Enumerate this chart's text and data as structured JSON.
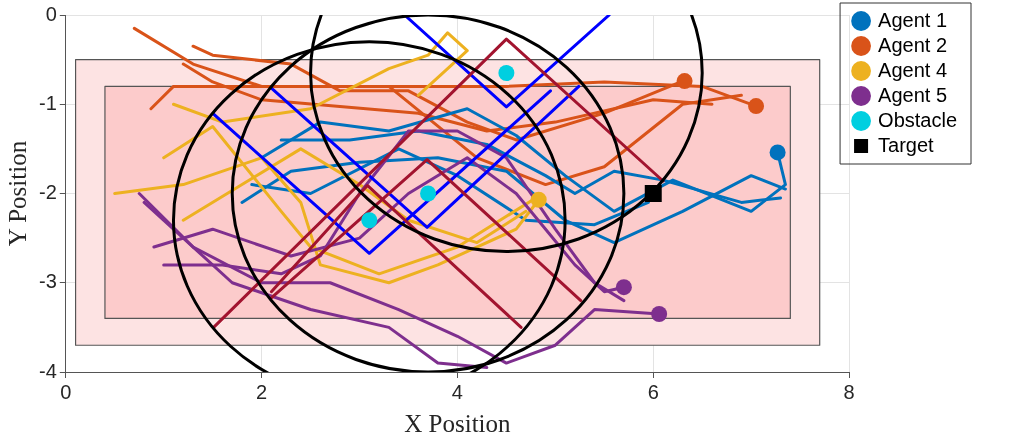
{
  "chart_data": {
    "type": "line",
    "xlabel": "X Position",
    "ylabel": "Y Position",
    "xlim": [
      0,
      8
    ],
    "ylim": [
      -4,
      0
    ],
    "xticks": [
      0,
      2,
      4,
      6,
      8
    ],
    "yticks": [
      -4,
      -3,
      -2,
      -1,
      0
    ],
    "grid": true,
    "legend": "right",
    "marker": "none",
    "line_style": "solid",
    "series": [
      {
        "type": "area",
        "color": "#fde3e3",
        "x": [
          0.1,
          7.7,
          7.7,
          0.1,
          0.1
        ],
        "values": [
          -0.5,
          -0.5,
          -3.7,
          -3.7,
          -0.5
        ]
      },
      {
        "type": "area",
        "color": "#fccbcb",
        "x": [
          0.4,
          7.4,
          7.4,
          0.4,
          0.4
        ],
        "values": [
          -0.8,
          -0.8,
          -3.4,
          -3.4,
          -0.8
        ]
      },
      {
        "type": "line",
        "color": "#d95319",
        "x": [
          0.7,
          1.3,
          2.0,
          3.0,
          4.5,
          5.5,
          6.5,
          7.05
        ],
        "values": [
          -0.15,
          -0.55,
          -0.8,
          -0.8,
          -0.8,
          -0.75,
          -0.8,
          -1.02
        ]
      },
      {
        "type": "line",
        "color": "#d95319",
        "x": [
          1.3,
          1.5,
          2.3,
          2.8,
          3.5,
          4.1,
          4.6,
          5.5,
          6.3
        ],
        "values": [
          -0.35,
          -0.45,
          -0.55,
          -0.85,
          -0.85,
          -1.2,
          -1.4,
          -1.1,
          -0.74
        ]
      },
      {
        "type": "line",
        "color": "#d95319",
        "x": [
          0.87,
          1.1,
          2.0,
          3.3,
          4.2,
          4.9,
          5.5,
          6.3,
          6.9
        ],
        "values": [
          -1.05,
          -0.8,
          -0.8,
          -0.8,
          -1.6,
          -1.9,
          -1.7,
          -1.0,
          -0.9
        ]
      },
      {
        "type": "line",
        "color": "#d95319",
        "x": [
          1.2,
          1.5,
          2.0,
          3.6,
          4.3,
          5.0,
          6.0,
          6.6
        ],
        "values": [
          -0.55,
          -0.75,
          -0.95,
          -1.1,
          -1.3,
          -1.2,
          -0.95,
          -1.0
        ]
      },
      {
        "type": "line",
        "color": "#0072bd",
        "x": [
          2.0,
          2.6,
          3.3,
          4.1,
          4.6,
          5.1,
          5.6,
          6.2,
          7.0,
          7.35,
          7.27
        ],
        "values": [
          -1.6,
          -1.2,
          -1.3,
          -1.05,
          -1.35,
          -1.8,
          -2.2,
          -1.85,
          -2.2,
          -1.9,
          -1.54
        ]
      },
      {
        "type": "line",
        "color": "#0072bd",
        "x": [
          1.8,
          2.3,
          3.0,
          3.8,
          4.5,
          5.1,
          5.6,
          6.3,
          7.0,
          7.35
        ],
        "values": [
          -2.1,
          -1.75,
          -1.65,
          -1.6,
          -1.75,
          -2.3,
          -2.55,
          -2.2,
          -1.8,
          -1.95
        ]
      },
      {
        "type": "line",
        "color": "#0072bd",
        "x": [
          2.2,
          2.9,
          3.6,
          4.3,
          4.9,
          5.2,
          5.6,
          6.1,
          6.9,
          7.3
        ],
        "values": [
          -1.4,
          -1.4,
          -1.3,
          -1.45,
          -1.8,
          -2.0,
          -1.75,
          -1.85,
          -2.1,
          -2.05
        ]
      },
      {
        "type": "line",
        "color": "#0072bd",
        "x": [
          1.9,
          2.5,
          3.4,
          4.0,
          4.7,
          5.4,
          5.95
        ],
        "values": [
          -1.9,
          -2.0,
          -1.5,
          -1.8,
          -2.3,
          -2.35,
          -2.1
        ]
      },
      {
        "type": "line",
        "color": "#edb120",
        "x": [
          1.1,
          1.6,
          2.5,
          3.3,
          3.7,
          3.9,
          4.1,
          3.9,
          3.6
        ],
        "values": [
          -1.0,
          -1.2,
          -1.05,
          -0.6,
          -0.45,
          -0.2,
          -0.4,
          -0.6,
          -0.9
        ]
      },
      {
        "type": "line",
        "color": "#edb120",
        "x": [
          0.5,
          1.2,
          2.0,
          2.4,
          2.6,
          3.3,
          3.8,
          4.6,
          4.83
        ],
        "values": [
          -2.0,
          -1.9,
          -1.6,
          -2.1,
          -2.8,
          -3.0,
          -2.8,
          -2.4,
          -2.07
        ]
      },
      {
        "type": "line",
        "color": "#edb120",
        "x": [
          1.0,
          1.5,
          2.2,
          2.5,
          3.2,
          4.0,
          4.8
        ],
        "values": [
          -1.6,
          -1.25,
          -2.2,
          -2.6,
          -2.9,
          -2.6,
          -2.05
        ]
      },
      {
        "type": "line",
        "color": "#edb120",
        "x": [
          1.2,
          1.8,
          2.4,
          3.0,
          3.5,
          4.2,
          4.7
        ],
        "values": [
          -2.3,
          -1.9,
          -1.5,
          -1.9,
          -2.3,
          -2.55,
          -2.2
        ]
      },
      {
        "type": "line",
        "color": "#7e2f8e",
        "x": [
          0.75,
          1.3,
          2.0,
          2.7,
          3.4,
          4.0,
          4.5,
          5.0,
          5.4,
          6.06
        ],
        "values": [
          -2.0,
          -2.6,
          -3.0,
          -3.0,
          -3.3,
          -3.6,
          -3.9,
          -3.7,
          -3.3,
          -3.35
        ]
      },
      {
        "type": "line",
        "color": "#7e2f8e",
        "x": [
          0.9,
          1.5,
          2.3,
          3.0,
          3.5,
          4.1,
          4.6,
          5.2,
          5.5,
          5.7
        ],
        "values": [
          -2.6,
          -2.4,
          -2.7,
          -2.5,
          -2.0,
          -1.6,
          -2.0,
          -2.8,
          -3.1,
          -3.05
        ]
      },
      {
        "type": "line",
        "color": "#7e2f8e",
        "x": [
          1.0,
          1.6,
          2.2,
          2.6,
          3.0,
          3.5,
          4.0,
          4.5,
          5.0,
          5.4,
          5.7
        ],
        "values": [
          -2.8,
          -2.8,
          -2.9,
          -2.7,
          -2.0,
          -1.3,
          -1.3,
          -1.6,
          -2.4,
          -3.0,
          -3.2
        ]
      },
      {
        "type": "line",
        "color": "#7e2f8e",
        "x": [
          0.8,
          1.7,
          2.5,
          3.3,
          3.8,
          4.3
        ],
        "values": [
          -2.1,
          -3.0,
          -3.3,
          -3.5,
          -3.9,
          -3.95
        ]
      },
      {
        "type": "line",
        "color": "#0000ff",
        "x": [
          1.51,
          3.1,
          4.95
        ],
        "values": [
          -1.11,
          -2.67,
          -0.85
        ]
      },
      {
        "type": "line",
        "color": "#0000ff",
        "x": [
          2.1,
          3.69,
          5.24
        ],
        "values": [
          -0.82,
          -2.38,
          -0.8
        ]
      },
      {
        "type": "line",
        "color": "#0000ff",
        "x": [
          3.46,
          4.5,
          5.55
        ],
        "values": [
          0,
          -1.03,
          0
        ]
      },
      {
        "type": "line",
        "color": "#a2142f",
        "x": [
          1.51,
          4.5,
          6.1
        ],
        "values": [
          -3.5,
          -0.27,
          -1.86
        ]
      },
      {
        "type": "line",
        "color": "#a2142f",
        "x": [
          2.1,
          3.69,
          5.26
        ],
        "values": [
          -3.17,
          -1.62,
          -3.2
        ]
      },
      {
        "type": "line",
        "color": "#a2142f",
        "x": [
          2.1,
          3.08,
          4.65
        ],
        "values": [
          -3.1,
          -1.91,
          -3.5
        ]
      },
      {
        "type": "scatter",
        "name": "Agent 1",
        "color": "#0072bd",
        "marker": "circle",
        "x": [
          7.27
        ],
        "values": [
          -1.54
        ]
      },
      {
        "type": "scatter",
        "name": "Agent 2",
        "color": "#d95319",
        "marker": "circle",
        "x": [
          7.05,
          6.32
        ],
        "values": [
          -1.02,
          -0.74
        ]
      },
      {
        "type": "scatter",
        "name": "Agent 4",
        "color": "#edb120",
        "marker": "circle",
        "x": [
          4.83
        ],
        "values": [
          -2.07
        ]
      },
      {
        "type": "scatter",
        "name": "Agent 5",
        "color": "#7e2f8e",
        "marker": "circle",
        "x": [
          6.06,
          5.7
        ],
        "values": [
          -3.35,
          -3.05
        ]
      },
      {
        "type": "scatter",
        "name": "Obstacle",
        "color": "#00cfe0",
        "marker": "circle",
        "x": [
          3.1,
          3.7,
          4.5
        ],
        "values": [
          -2.3,
          -2.0,
          -0.65
        ]
      },
      {
        "type": "scatter",
        "name": "Target",
        "color": "#000000",
        "marker": "square",
        "x": [
          6.0
        ],
        "values": [
          -2.0
        ]
      }
    ]
  }
}
